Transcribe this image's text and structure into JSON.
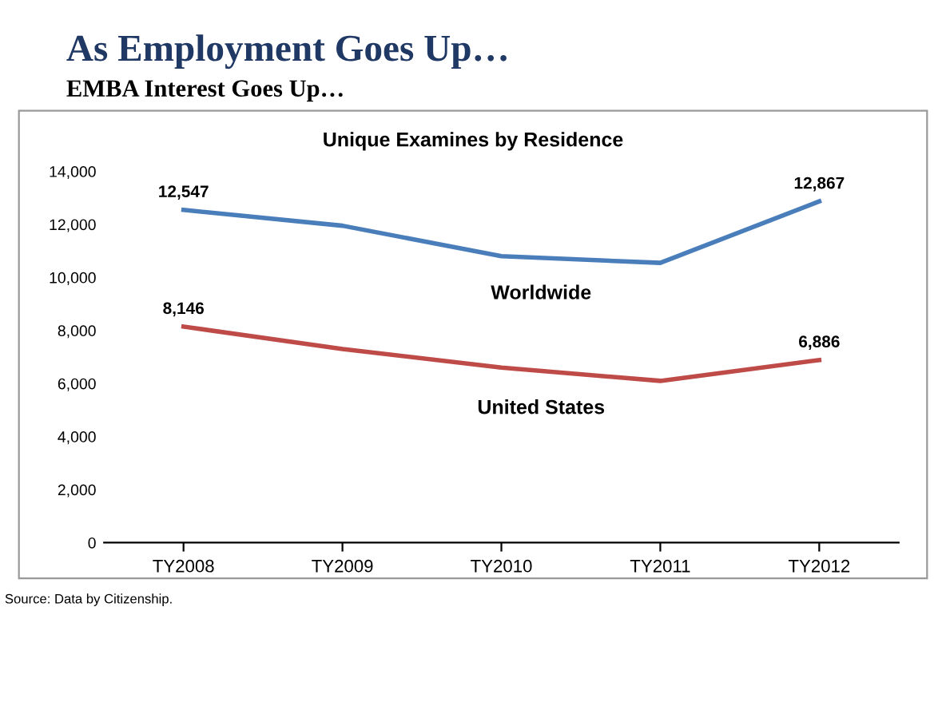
{
  "chart_data": {
    "type": "line",
    "title": "As Employment Goes Up…",
    "subtitle": "EMBA Interest Goes Up…",
    "annotations": [
      "Unique Examines by Residence",
      "Source: Data by Citizenship."
    ],
    "categories": [
      "TY2008",
      "TY2009",
      "TY2010",
      "TY2011",
      "TY2012"
    ],
    "series": [
      {
        "name": "Worldwide",
        "color": "#4a7ebb",
        "values": [
          12547,
          11950,
          10800,
          10550,
          12867
        ],
        "value_labels": [
          "12,547",
          null,
          null,
          null,
          "12,867"
        ]
      },
      {
        "name": "United States",
        "color": "#be4b48",
        "values": [
          8146,
          7300,
          6600,
          6100,
          6886
        ],
        "value_labels": [
          "8,146",
          null,
          null,
          null,
          "6,886"
        ]
      }
    ],
    "ylim": [
      0,
      14000
    ],
    "yticks": [
      0,
      {
        "value": 2000,
        "label": "2,000"
      },
      {
        "value": 4000,
        "label": "4,000"
      },
      {
        "value": 6000,
        "label": "6,000"
      },
      {
        "value": 8000,
        "label": "8,000"
      },
      {
        "value": 10000,
        "label": "10,000"
      },
      {
        "value": 12000,
        "label": "12,000"
      },
      {
        "value": 14000,
        "label": "14,000"
      }
    ],
    "grid": false,
    "legend": false,
    "marker": "none",
    "line_style": "solid"
  }
}
